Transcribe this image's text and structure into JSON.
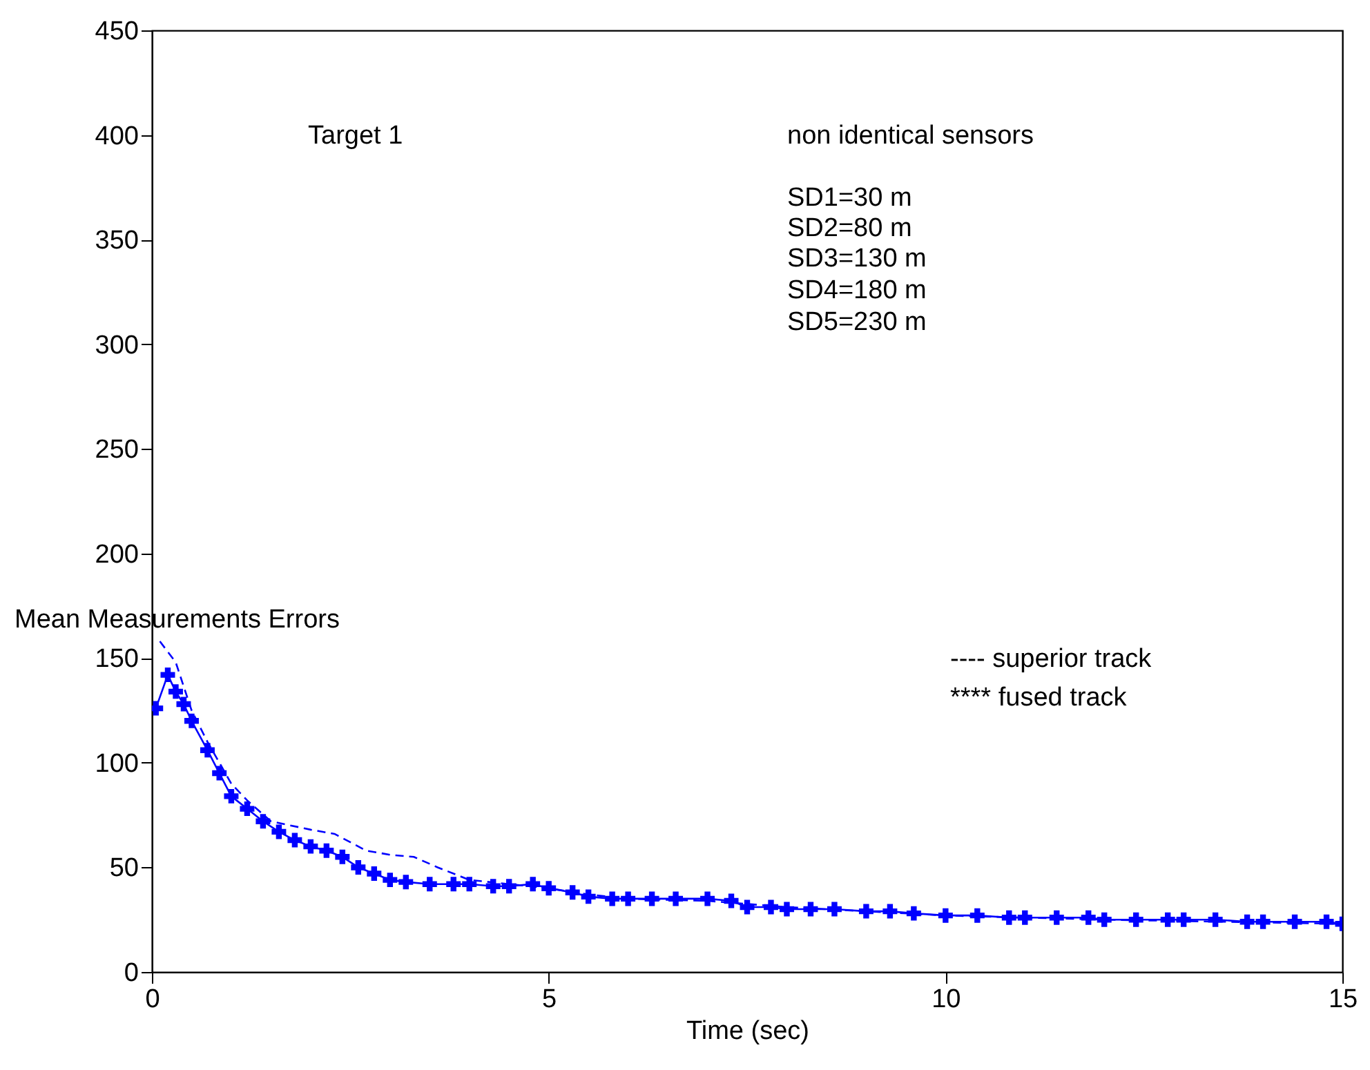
{
  "chart_data": {
    "type": "line",
    "xlabel": "Time (sec)",
    "ylabel": "Mean Measurements Errors",
    "xlim": [
      0,
      15
    ],
    "ylim": [
      0,
      450
    ],
    "xticks": [
      0,
      5,
      10,
      15
    ],
    "yticks": [
      0,
      50,
      100,
      150,
      200,
      250,
      300,
      350,
      400,
      450
    ],
    "grid": false,
    "annotations": [
      "Target 1",
      "non identical sensors",
      "SD1=30 m",
      "SD2=80 m",
      "SD3=130 m",
      "SD4=180 m",
      "SD5=230 m",
      "---- superior track",
      "**** fused track"
    ],
    "series": [
      {
        "color": "#0000ff",
        "line_style": "dashed",
        "marker": "none",
        "x": [
          0.1,
          0.3,
          0.5,
          0.7,
          1.0,
          1.2,
          1.5,
          2.0,
          2.3,
          2.7,
          3.0,
          3.3,
          3.6,
          4.0,
          4.5,
          5.0,
          5.5,
          6.0,
          7.0,
          8.0,
          9.0,
          10.0,
          12.0,
          15.0
        ],
        "values": [
          158,
          148,
          125,
          110,
          90,
          82,
          72,
          68,
          66,
          58,
          56,
          55,
          50,
          44,
          42,
          40,
          37,
          35,
          34,
          31,
          29,
          27,
          25,
          23
        ]
      },
      {
        "color": "#0000ff",
        "line_style": "solid",
        "marker": "cross",
        "x": [
          0.05,
          0.2,
          0.3,
          0.4,
          0.5,
          0.7,
          0.85,
          1.0,
          1.2,
          1.4,
          1.6,
          1.8,
          2.0,
          2.2,
          2.4,
          2.6,
          2.8,
          3.0,
          3.2,
          3.5,
          3.8,
          4.0,
          4.3,
          4.5,
          4.8,
          5.0,
          5.3,
          5.5,
          5.8,
          6.0,
          6.3,
          6.6,
          7.0,
          7.3,
          7.5,
          7.8,
          8.0,
          8.3,
          8.6,
          9.0,
          9.3,
          9.6,
          10.0,
          10.4,
          10.8,
          11.0,
          11.4,
          11.8,
          12.0,
          12.4,
          12.8,
          13.0,
          13.4,
          13.8,
          14.0,
          14.4,
          14.8,
          15.0
        ],
        "values": [
          126,
          142,
          134,
          128,
          120,
          106,
          95,
          84,
          78,
          72,
          67,
          63,
          60,
          58,
          55,
          50,
          47,
          44,
          43,
          42,
          42,
          42,
          41,
          41,
          42,
          40,
          38,
          36,
          35,
          35,
          35,
          35,
          35,
          34,
          31,
          31,
          30,
          30,
          30,
          29,
          29,
          28,
          27,
          27,
          26,
          26,
          26,
          26,
          25,
          25,
          25,
          25,
          25,
          24,
          24,
          24,
          24,
          23
        ]
      }
    ]
  }
}
